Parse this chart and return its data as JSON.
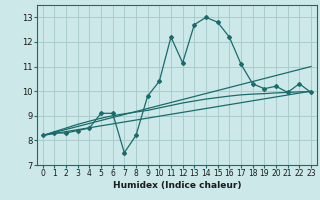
{
  "xlabel": "Humidex (Indice chaleur)",
  "xlim": [
    -0.5,
    23.5
  ],
  "ylim": [
    7,
    13.5
  ],
  "xticks": [
    0,
    1,
    2,
    3,
    4,
    5,
    6,
    7,
    8,
    9,
    10,
    11,
    12,
    13,
    14,
    15,
    16,
    17,
    18,
    19,
    20,
    21,
    22,
    23
  ],
  "yticks": [
    7,
    8,
    9,
    10,
    11,
    12,
    13
  ],
  "bg_color": "#cce8e8",
  "grid_color": "#aacccc",
  "line_color": "#1a6b6b",
  "jagged_x": [
    0,
    1,
    2,
    3,
    4,
    5,
    6,
    7,
    8,
    9,
    10,
    11,
    12,
    13,
    14,
    15,
    16,
    17,
    18,
    19,
    20,
    21,
    22,
    23
  ],
  "jagged_y": [
    8.2,
    8.3,
    8.3,
    8.4,
    8.5,
    9.1,
    9.1,
    7.5,
    8.2,
    9.8,
    10.4,
    12.2,
    11.15,
    12.7,
    13.0,
    12.8,
    12.2,
    11.1,
    10.3,
    10.1,
    10.2,
    9.95,
    10.3,
    9.95
  ],
  "line1_x": [
    0,
    23
  ],
  "line1_y": [
    8.2,
    11.0
  ],
  "line2_x": [
    0,
    23
  ],
  "line2_y": [
    8.2,
    10.0
  ],
  "curve_x": [
    0,
    1,
    2,
    3,
    4,
    5,
    6,
    7,
    8,
    9,
    10,
    11,
    12,
    13,
    14,
    15,
    16,
    17,
    18,
    19,
    20,
    21,
    22,
    23
  ],
  "curve_y": [
    8.2,
    8.35,
    8.5,
    8.65,
    8.78,
    8.9,
    9.0,
    9.08,
    9.15,
    9.22,
    9.32,
    9.42,
    9.52,
    9.6,
    9.68,
    9.74,
    9.8,
    9.85,
    9.88,
    9.9,
    9.93,
    9.95,
    9.97,
    9.98
  ]
}
